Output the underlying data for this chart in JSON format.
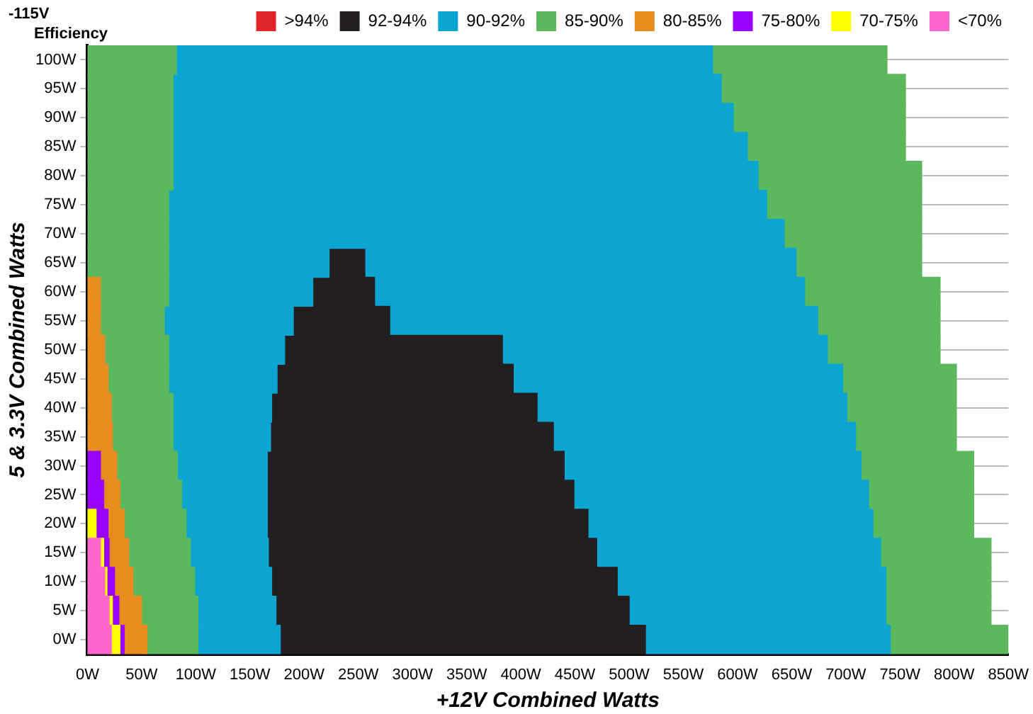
{
  "chart_data": {
    "type": "bar",
    "orientation": "horizontal",
    "stacked": true,
    "title": "-115V",
    "subtitle": "Efficiency",
    "xlabel": "+12V Combined Watts",
    "ylabel": "5 & 3.3V Combined Watts",
    "categories": [
      "100W",
      "95W",
      "90W",
      "85W",
      "80W",
      "75W",
      "70W",
      "65W",
      "60W",
      "55W",
      "50W",
      "45W",
      "40W",
      "35W",
      "30W",
      "25W",
      "20W",
      "15W",
      "10W",
      "5W",
      "0W"
    ],
    "xlim": [
      0,
      850
    ],
    "xticks": [
      {
        "value": 0,
        "label": "0W"
      },
      {
        "value": 50,
        "label": "50W"
      },
      {
        "value": 100,
        "label": "100W"
      },
      {
        "value": 150,
        "label": "150W"
      },
      {
        "value": 200,
        "label": "200W"
      },
      {
        "value": 250,
        "label": "250W"
      },
      {
        "value": 300,
        "label": "300W"
      },
      {
        "value": 350,
        "label": "350W"
      },
      {
        "value": 400,
        "label": "400W"
      },
      {
        "value": 450,
        "label": "450W"
      },
      {
        "value": 500,
        "label": "500W"
      },
      {
        "value": 550,
        "label": "550W"
      },
      {
        "value": 600,
        "label": "600W"
      },
      {
        "value": 650,
        "label": "650W"
      },
      {
        "value": 700,
        "label": "700W"
      },
      {
        "value": 750,
        "label": "750W"
      },
      {
        "value": 800,
        "label": "800W"
      },
      {
        "value": 850,
        "label": "850W"
      }
    ],
    "grid": "y",
    "legend": "top right",
    "series": [
      {
        "name": "<70%",
        "color": "#ff66cc",
        "values": [
          null,
          null,
          null,
          null,
          null,
          null,
          null,
          null,
          null,
          null,
          null,
          null,
          null,
          null,
          null,
          null,
          null,
          12,
          16,
          20,
          22
        ]
      },
      {
        "name": "70-75%",
        "color": "#ffff00",
        "values": [
          null,
          null,
          null,
          null,
          null,
          null,
          null,
          null,
          null,
          null,
          null,
          null,
          null,
          null,
          null,
          null,
          8,
          3,
          2,
          3,
          8
        ]
      },
      {
        "name": "75-80%",
        "color": "#9900ff",
        "values": [
          null,
          null,
          null,
          null,
          null,
          null,
          null,
          null,
          null,
          null,
          null,
          null,
          null,
          null,
          12,
          15,
          11,
          5,
          7,
          6,
          4
        ]
      },
      {
        "name": "80-85%",
        "color": "#e98b1f",
        "values": [
          null,
          null,
          null,
          null,
          null,
          null,
          null,
          null,
          12,
          12,
          16,
          19,
          22,
          23,
          15,
          15,
          15,
          18,
          17,
          21,
          21
        ]
      },
      {
        "name": "85-90%",
        "color": "#5cb85c",
        "values": [
          82,
          79,
          79,
          79,
          79,
          75,
          75,
          75,
          63,
          59,
          59,
          56,
          57,
          56,
          56,
          57,
          57,
          57,
          57,
          52,
          47
        ]
      },
      {
        "name": "90-92%",
        "color": "#0ca5d1",
        "values": [
          495,
          506,
          517,
          530,
          540,
          552,
          568,
          148,
          133,
          119,
          107,
          100,
          91,
          90,
          83,
          79,
          75,
          72,
          71,
          72,
          76
        ]
      },
      {
        "name": "92-94%",
        "color": "#231f20",
        "values": [
          null,
          null,
          null,
          null,
          null,
          null,
          null,
          33,
          57,
          89,
          201,
          218,
          245,
          261,
          274,
          283,
          296,
          303,
          319,
          326,
          337
        ]
      },
      {
        "color": "#0ca5d1",
        "values": [
          null,
          null,
          null,
          null,
          null,
          null,
          null,
          398,
          397,
          395,
          300,
          304,
          286,
          279,
          274,
          272,
          263,
          262,
          248,
          237,
          226
        ]
      },
      {
        "color": "#5cb85c",
        "values": [
          161,
          170,
          159,
          146,
          151,
          143,
          127,
          116,
          125,
          113,
          104,
          105,
          101,
          93,
          104,
          97,
          93,
          102,
          97,
          97,
          109
        ]
      },
      {
        "name": ">94%",
        "color": "#e0262a",
        "values": [
          null,
          null,
          null,
          null,
          null,
          null,
          null,
          null,
          null,
          null,
          null,
          null,
          null,
          null,
          null,
          null,
          null,
          null,
          null,
          null,
          null
        ]
      }
    ]
  }
}
